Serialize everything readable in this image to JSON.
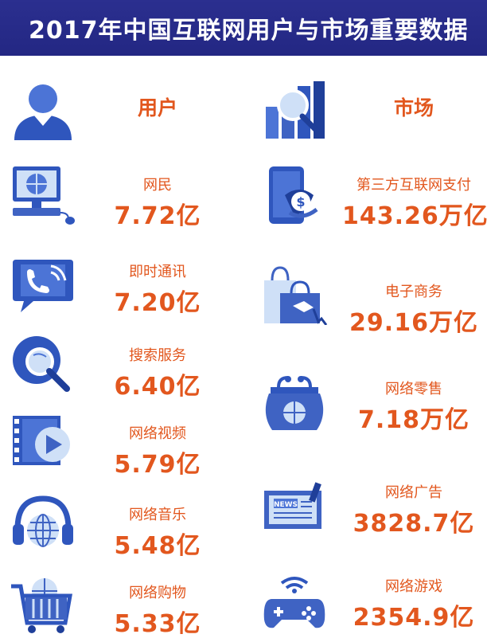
{
  "header": {
    "title": "2017年中国互联网用户与市场重要数据"
  },
  "users": {
    "heading": "用户",
    "items": [
      {
        "label": "网民",
        "value": "7.72亿",
        "icon": "computer-globe-icon"
      },
      {
        "label": "即时通讯",
        "value": "7.20亿",
        "icon": "phone-chat-icon"
      },
      {
        "label": "搜索服务",
        "value": "6.40亿",
        "icon": "globe-search-icon"
      },
      {
        "label": "网络视频",
        "value": "5.79亿",
        "icon": "video-play-icon"
      },
      {
        "label": "网络音乐",
        "value": "5.48亿",
        "icon": "headphones-globe-icon"
      },
      {
        "label": "网络购物",
        "value": "5.33亿",
        "icon": "shopping-cart-icon"
      }
    ]
  },
  "market": {
    "heading": "市场",
    "items": [
      {
        "label": "第三方互联网支付",
        "value": "143.26万亿",
        "icon": "mobile-payment-icon"
      },
      {
        "label": "电子商务",
        "value": "29.16万亿",
        "icon": "shopping-bags-icon"
      },
      {
        "label": "网络零售",
        "value": "7.18万亿",
        "icon": "purse-globe-icon"
      },
      {
        "label": "网络广告",
        "value": "3828.7亿",
        "icon": "news-ad-icon"
      },
      {
        "label": "网络游戏",
        "value": "2354.9亿",
        "icon": "game-controller-icon"
      }
    ]
  },
  "colors": {
    "header_bg": "#2b2f8f",
    "accent": "#e2571e",
    "icon_blue": "#3f63c3"
  }
}
